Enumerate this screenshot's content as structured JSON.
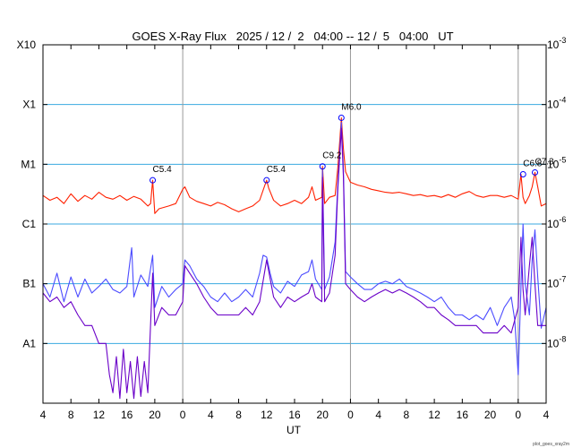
{
  "chart_data": {
    "type": "line",
    "title": "GOES X-Ray Flux   2025 / 12 /  2   04:00 -- 12 /  5   04:00   UT",
    "xlabel": "UT",
    "ylabel": "",
    "y_scale": "log",
    "y_unit_range": [
      1e-09,
      0.001
    ],
    "grid": true,
    "legend": "none",
    "x_range_hours": [
      4,
      76
    ],
    "x_tick_hours": [
      4,
      8,
      12,
      16,
      20,
      24,
      28,
      32,
      36,
      40,
      44,
      48,
      52,
      56,
      60,
      64,
      68,
      72,
      76
    ],
    "x_tick_labels": [
      "4",
      "8",
      "12",
      "16",
      "20",
      "0",
      "4",
      "8",
      "12",
      "16",
      "20",
      "0",
      "4",
      "8",
      "12",
      "16",
      "20",
      "0",
      "4"
    ],
    "day_boundaries_hours": [
      24,
      48,
      72
    ],
    "y_left_ticks": [
      {
        "label": "X10",
        "value": 0.001
      },
      {
        "label": "X1",
        "value": 0.0001
      },
      {
        "label": "M1",
        "value": 1e-05
      },
      {
        "label": "C1",
        "value": 1e-06
      },
      {
        "label": "B1",
        "value": 1e-07
      },
      {
        "label": "A1",
        "value": 1e-08
      }
    ],
    "y_right_ticks": [
      {
        "base": "10",
        "exp": "-3",
        "value": 0.001
      },
      {
        "base": "10",
        "exp": "-4",
        "value": 0.0001
      },
      {
        "base": "10",
        "exp": "-5",
        "value": 1e-05
      },
      {
        "base": "10",
        "exp": "-6",
        "value": 1e-06
      },
      {
        "base": "10",
        "exp": "-7",
        "value": 1e-07
      },
      {
        "base": "10",
        "exp": "-8",
        "value": 1e-08
      }
    ],
    "annotations": [
      {
        "label": "C5.4",
        "x": 19.7,
        "y": 5.4e-06
      },
      {
        "label": "C5.4",
        "x": 36.0,
        "y": 5.4e-06
      },
      {
        "label": "C9.2",
        "x": 44.0,
        "y": 9.2e-06
      },
      {
        "label": "M6.0",
        "x": 46.7,
        "y": 6e-05
      },
      {
        "label": "C6.8",
        "x": 72.7,
        "y": 6.8e-06
      },
      {
        "label": "C7.3",
        "x": 74.4,
        "y": 7.3e-06
      }
    ],
    "series": [
      {
        "color": "#ff2000",
        "x": [
          4.0,
          5.0,
          6.0,
          7.0,
          8.0,
          9.0,
          10.0,
          11.0,
          12.0,
          13.0,
          14.0,
          15.0,
          16.0,
          17.0,
          18.0,
          19.0,
          19.4,
          19.7,
          20.0,
          20.6,
          22.0,
          23.0,
          24.0,
          24.3,
          25.0,
          26.0,
          27.0,
          28.0,
          29.0,
          30.0,
          31.0,
          32.0,
          33.0,
          34.0,
          35.0,
          35.6,
          36.0,
          36.3,
          37.0,
          38.0,
          39.0,
          40.0,
          41.0,
          42.0,
          42.5,
          43.0,
          43.9,
          44.0,
          44.3,
          45.0,
          45.8,
          46.2,
          46.7,
          47.0,
          47.3,
          48.0,
          49.0,
          50.0,
          51.0,
          52.0,
          53.0,
          54.0,
          55.0,
          56.0,
          57.0,
          58.0,
          59.0,
          60.0,
          61.0,
          62.0,
          63.0,
          64.0,
          65.0,
          66.0,
          67.0,
          68.0,
          69.0,
          70.0,
          71.0,
          72.0,
          72.4,
          72.7,
          73.0,
          73.6,
          74.0,
          74.4,
          74.8,
          75.3,
          76.0
        ],
        "y": [
          3e-06,
          2.5e-06,
          2.8e-06,
          2.2e-06,
          3.2e-06,
          2.4e-06,
          3e-06,
          2.6e-06,
          3.4e-06,
          2.8e-06,
          2.6e-06,
          3e-06,
          2.5e-06,
          2.9e-06,
          2.6e-06,
          2e-06,
          2.2e-06,
          5.4e-06,
          1.5e-06,
          1.8e-06,
          2e-06,
          2.2e-06,
          3.8e-06,
          4.2e-06,
          2.8e-06,
          2.4e-06,
          2.2e-06,
          2e-06,
          2.3e-06,
          2.1e-06,
          1.8e-06,
          1.6e-06,
          1.8e-06,
          2e-06,
          2.5e-06,
          4e-06,
          5.4e-06,
          4e-06,
          2.5e-06,
          2e-06,
          2.2e-06,
          2.5e-06,
          2.2e-06,
          2.8e-06,
          4.2e-06,
          2.5e-06,
          2.8e-06,
          9.2e-06,
          2.2e-06,
          2.8e-06,
          3e-06,
          9e-06,
          6e-05,
          1.8e-05,
          7.5e-06,
          5e-06,
          4.5e-06,
          4.2e-06,
          3.8e-06,
          3.6e-06,
          3.4e-06,
          3.3e-06,
          3.4e-06,
          3.2e-06,
          3e-06,
          3.1e-06,
          2.9e-06,
          3e-06,
          2.8e-06,
          3.1e-06,
          2.8e-06,
          3.2e-06,
          3.5e-06,
          3e-06,
          2.8e-06,
          3e-06,
          3e-06,
          2.8e-06,
          3e-06,
          2.6e-06,
          6.8e-06,
          2.8e-06,
          2.2e-06,
          3e-06,
          4.2e-06,
          7.3e-06,
          4.2e-06,
          2e-06,
          2.2e-06
        ]
      },
      {
        "color": "#4b4bff",
        "x": [
          4.0,
          5.0,
          6.0,
          7.0,
          8.0,
          9.0,
          10.0,
          11.0,
          12.0,
          13.0,
          14.0,
          15.0,
          16.0,
          16.7,
          17.0,
          18.0,
          19.0,
          19.7,
          20.0,
          21.0,
          22.0,
          23.0,
          24.0,
          24.3,
          25.0,
          26.0,
          27.0,
          28.0,
          29.0,
          30.0,
          31.0,
          32.0,
          33.0,
          34.0,
          35.0,
          35.5,
          36.0,
          36.5,
          37.0,
          38.0,
          39.0,
          40.0,
          41.0,
          42.0,
          42.5,
          43.0,
          43.9,
          44.0,
          44.3,
          45.0,
          45.8,
          46.2,
          46.7,
          47.0,
          47.3,
          48.0,
          49.0,
          50.0,
          51.0,
          52.0,
          53.0,
          54.0,
          55.0,
          56.0,
          57.0,
          58.0,
          59.0,
          60.0,
          61.0,
          62.0,
          63.0,
          64.0,
          65.0,
          66.0,
          67.0,
          68.0,
          69.0,
          70.0,
          71.0,
          71.5,
          72.0,
          72.4,
          72.7,
          73.0,
          73.6,
          74.0,
          74.4,
          74.8,
          75.3,
          76.0
        ],
        "y": [
          1e-07,
          6e-08,
          1.5e-07,
          5e-08,
          1.3e-07,
          6e-08,
          1.2e-07,
          7e-08,
          9e-08,
          1.2e-07,
          8e-08,
          7e-08,
          9e-08,
          4e-07,
          6e-08,
          1.4e-07,
          9e-08,
          3e-07,
          4e-08,
          9e-08,
          6e-08,
          8e-08,
          1e-07,
          2.5e-07,
          2e-07,
          1.2e-07,
          9e-08,
          6e-08,
          5e-08,
          7e-08,
          5e-08,
          6e-08,
          8e-08,
          6e-08,
          1.5e-07,
          3e-07,
          2.8e-07,
          1.5e-07,
          9e-08,
          7e-08,
          1.1e-07,
          9e-08,
          1.4e-07,
          1.6e-07,
          2.5e-07,
          1.2e-07,
          8e-08,
          8e-06,
          8e-08,
          1.3e-07,
          5e-07,
          5e-06,
          5e-05,
          8e-06,
          1.6e-07,
          1.3e-07,
          1e-07,
          8e-08,
          8e-08,
          1e-07,
          1.1e-07,
          1e-07,
          1.2e-07,
          9e-08,
          8e-08,
          7e-08,
          6e-08,
          5e-08,
          6e-08,
          4e-08,
          3e-08,
          3e-08,
          2.5e-08,
          3e-08,
          2.5e-08,
          4e-08,
          2e-08,
          4e-08,
          6e-08,
          2.5e-08,
          3e-09,
          9e-08,
          1e-06,
          1e-07,
          3e-08,
          2.5e-07,
          8e-07,
          1.3e-07,
          1.8e-08,
          4e-08
        ]
      },
      {
        "color": "#6a00c8",
        "x": [
          4.0,
          5.0,
          6.0,
          7.0,
          8.0,
          9.0,
          10.0,
          11.0,
          12.0,
          13.0,
          13.5,
          14.0,
          14.5,
          15.0,
          15.5,
          16.0,
          16.5,
          17.0,
          17.5,
          18.0,
          18.5,
          19.0,
          19.7,
          20.0,
          21.0,
          22.0,
          23.0,
          24.0,
          24.3,
          25.0,
          26.0,
          27.0,
          28.0,
          29.0,
          30.0,
          31.0,
          32.0,
          33.0,
          34.0,
          35.0,
          36.0,
          37.0,
          38.0,
          39.0,
          40.0,
          41.0,
          42.0,
          42.5,
          43.0,
          43.9,
          44.0,
          44.3,
          45.0,
          45.8,
          46.2,
          46.7,
          47.0,
          47.3,
          48.0,
          49.0,
          50.0,
          51.0,
          52.0,
          53.0,
          54.0,
          55.0,
          56.0,
          57.0,
          58.0,
          59.0,
          60.0,
          61.0,
          62.0,
          63.0,
          64.0,
          65.0,
          66.0,
          67.0,
          68.0,
          69.0,
          70.0,
          71.0,
          72.0,
          72.4,
          72.7,
          73.0,
          73.6,
          74.0,
          74.4,
          74.8,
          75.3,
          76.0
        ],
        "y": [
          7e-08,
          5e-08,
          6e-08,
          4e-08,
          5e-08,
          3e-08,
          2e-08,
          2e-08,
          1e-08,
          1e-08,
          3e-09,
          1.5e-09,
          6e-09,
          1.2e-09,
          8e-09,
          1.5e-09,
          5e-09,
          1.2e-09,
          6e-09,
          1.3e-09,
          5e-09,
          1.5e-09,
          1.5e-07,
          2e-08,
          4e-08,
          3e-08,
          3e-08,
          5e-08,
          2e-07,
          1.5e-07,
          1e-07,
          6e-08,
          4e-08,
          3e-08,
          3e-08,
          3e-08,
          3e-08,
          4e-08,
          3e-08,
          5e-08,
          2.5e-07,
          6e-08,
          4e-08,
          6e-08,
          5e-08,
          6e-08,
          7e-08,
          1e-07,
          6e-08,
          5e-08,
          6e-06,
          5e-08,
          7e-08,
          3e-07,
          4e-06,
          4e-05,
          6e-06,
          1e-07,
          8e-08,
          6e-08,
          5e-08,
          6e-08,
          7e-08,
          8e-08,
          7e-08,
          8e-08,
          7e-08,
          6e-08,
          5e-08,
          4e-08,
          4e-08,
          3e-08,
          2.5e-08,
          2e-08,
          2e-08,
          2e-08,
          2e-08,
          1.5e-08,
          1.5e-08,
          1.5e-08,
          2e-08,
          1.5e-08,
          4e-08,
          6e-07,
          8e-08,
          3e-08,
          2e-07,
          6e-07,
          1e-07,
          2e-08,
          2e-08,
          2e-08
        ]
      }
    ],
    "credit": "plot_goes_xray2m"
  }
}
